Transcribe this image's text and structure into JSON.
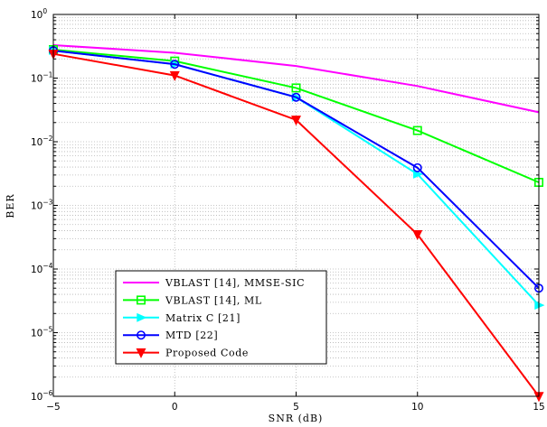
{
  "chart_data": {
    "type": "line",
    "xlabel": "SNR (dB)",
    "ylabel": "BER",
    "xlim": [
      -5,
      15
    ],
    "ylim": [
      1e-06,
      1
    ],
    "y_scale": "log",
    "grid": true,
    "legend_position": "bottom-left",
    "x_ticks": [
      "−5",
      "0",
      "5",
      "10",
      "15"
    ],
    "y_ticks": [
      {
        "base": "10",
        "exp": "0"
      },
      {
        "base": "10",
        "exp": "−1"
      },
      {
        "base": "10",
        "exp": "−2"
      },
      {
        "base": "10",
        "exp": "−3"
      },
      {
        "base": "10",
        "exp": "−4"
      },
      {
        "base": "10",
        "exp": "−5"
      },
      {
        "base": "10",
        "exp": "−6"
      }
    ],
    "x": [
      -5,
      0,
      5,
      10,
      15
    ],
    "series": [
      {
        "name": "VBLAST [14], MMSE-SIC",
        "color": "#ff00ff",
        "marker": "none",
        "values": [
          0.33,
          0.25,
          0.155,
          0.075,
          0.029
        ]
      },
      {
        "name": "VBLAST [14], ML",
        "color": "#00ff00",
        "marker": "square",
        "values": [
          0.28,
          0.185,
          0.07,
          0.015,
          0.0023
        ]
      },
      {
        "name": "Matrix C [21]",
        "color": "#00ffff",
        "marker": "triangle-right",
        "values": [
          0.27,
          0.165,
          0.05,
          0.0031,
          2.7e-05
        ]
      },
      {
        "name": "MTD [22]",
        "color": "#0000ff",
        "marker": "circle",
        "values": [
          0.27,
          0.165,
          0.05,
          0.0039,
          5e-05
        ]
      },
      {
        "name": "Proposed Code",
        "color": "#ff0000",
        "marker": "triangle-down",
        "values": [
          0.24,
          0.11,
          0.022,
          0.00035,
          1e-06
        ]
      }
    ]
  }
}
